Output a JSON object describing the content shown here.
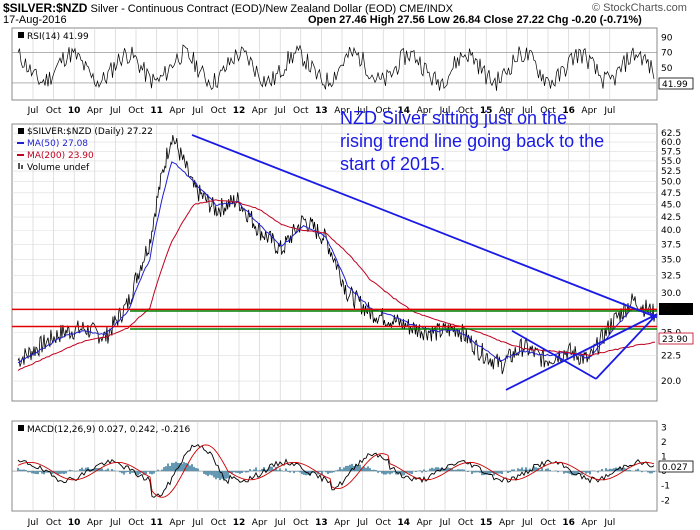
{
  "header": {
    "symbol": "$SILVER:$NZD",
    "description": "Silver - Continuous Contract (EOD)/New Zealand Dollar (EOD)  CME/INDX",
    "watermark": "© StockCharts.com",
    "date": "17-Aug-2016",
    "quote": "Open 27.46  High 27.56  Low 26.84  Close 27.22  Chg -0.20 (-0.71%)"
  },
  "rsi": {
    "label": "RSI(14) 41.99",
    "ticks": [
      "90",
      "70",
      "50",
      "30"
    ],
    "current": "41.99",
    "levels": [
      70,
      30
    ]
  },
  "price": {
    "legend_main": "$SILVER:$NZD (Daily) 27.22",
    "legend_ma50": "MA(50) 27.08",
    "legend_ma200": "MA(200) 23.90",
    "legend_volume": "Volume undef",
    "ticks": [
      "62.5",
      "60.0",
      "57.5",
      "55.0",
      "52.5",
      "50.0",
      "47.5",
      "45.0",
      "42.5",
      "40.0",
      "37.5",
      "35.0",
      "32.5",
      "30.0",
      "25.0",
      "22.5",
      "20.0"
    ],
    "badges": [
      "27.22",
      "23.90"
    ],
    "annotation": [
      "NZD Silver sitting just on the",
      "rising trend line going back to the",
      "start of 2015."
    ]
  },
  "macd": {
    "label": "MACD(12,26,9) 0.027, 0.242, -0.216",
    "ticks": [
      "3",
      "2",
      "1",
      "0",
      "-1",
      "-2"
    ],
    "badge": "0.027"
  },
  "xaxis": {
    "labels": [
      "Jul",
      "Oct",
      "10",
      "Apr",
      "Jul",
      "Oct",
      "11",
      "Apr",
      "Jul",
      "Oct",
      "12",
      "Apr",
      "Jul",
      "Oct",
      "13",
      "Apr",
      "Jul",
      "Oct",
      "14",
      "Apr",
      "Jul",
      "Oct",
      "15",
      "Apr",
      "Jul",
      "Oct",
      "16",
      "Apr",
      "Jul"
    ],
    "bold": [
      "10",
      "11",
      "12",
      "13",
      "14",
      "15",
      "16"
    ]
  },
  "colors": {
    "price": "#000000",
    "ma50": "#1f1fd0",
    "ma200": "#c0001f",
    "trend": "#1a1ae6",
    "support_red": "#e00000",
    "support_green": "#008000",
    "macd_line": "#000000",
    "macd_signal": "#cc0000",
    "macd_hist": "#3d7fa0",
    "annotation": "#1a1ae6"
  },
  "chart_data": {
    "type": "line",
    "title": "$SILVER:$NZD (Daily)",
    "x": [
      "2009-07",
      "2009-10",
      "2010-01",
      "2010-04",
      "2010-07",
      "2010-10",
      "2011-01",
      "2011-04",
      "2011-07",
      "2011-10",
      "2012-01",
      "2012-04",
      "2012-07",
      "2012-10",
      "2013-01",
      "2013-04",
      "2013-07",
      "2013-10",
      "2014-01",
      "2014-04",
      "2014-07",
      "2014-10",
      "2015-01",
      "2015-04",
      "2015-07",
      "2015-10",
      "2016-01",
      "2016-04",
      "2016-07",
      "2016-08"
    ],
    "series": [
      {
        "name": "$SILVER:$NZD",
        "values": [
          22.0,
          23.5,
          25.0,
          25.5,
          24.5,
          28.5,
          38.0,
          62.0,
          48.5,
          44.0,
          46.0,
          40.0,
          36.5,
          42.0,
          38.5,
          30.0,
          27.5,
          26.5,
          25.5,
          25.0,
          25.5,
          23.0,
          21.5,
          23.5,
          22.0,
          23.0,
          22.0,
          26.0,
          29.0,
          27.22
        ]
      },
      {
        "name": "MA(50)",
        "values": [
          21.8,
          23.0,
          24.5,
          25.2,
          24.8,
          27.5,
          35.0,
          55.0,
          50.0,
          45.0,
          45.5,
          41.0,
          37.0,
          41.0,
          39.0,
          31.0,
          28.0,
          27.0,
          25.8,
          25.2,
          25.3,
          23.5,
          22.0,
          23.0,
          22.5,
          22.8,
          22.2,
          25.0,
          28.0,
          27.08
        ]
      },
      {
        "name": "MA(200)",
        "values": [
          21.0,
          22.0,
          23.0,
          24.0,
          24.5,
          25.5,
          28.0,
          38.0,
          45.0,
          46.0,
          45.5,
          44.0,
          41.0,
          40.0,
          39.5,
          36.0,
          32.0,
          29.5,
          27.5,
          26.5,
          25.8,
          25.0,
          24.0,
          23.2,
          23.0,
          22.8,
          22.5,
          23.0,
          23.5,
          23.9
        ]
      }
    ],
    "rsi": {
      "levels": [
        70,
        30
      ],
      "last": 41.99
    },
    "macd": {
      "macd": 0.027,
      "signal": 0.242,
      "histogram": -0.216
    },
    "ylim": [
      18.5,
      64
    ],
    "scale": "log",
    "grid": true
  }
}
